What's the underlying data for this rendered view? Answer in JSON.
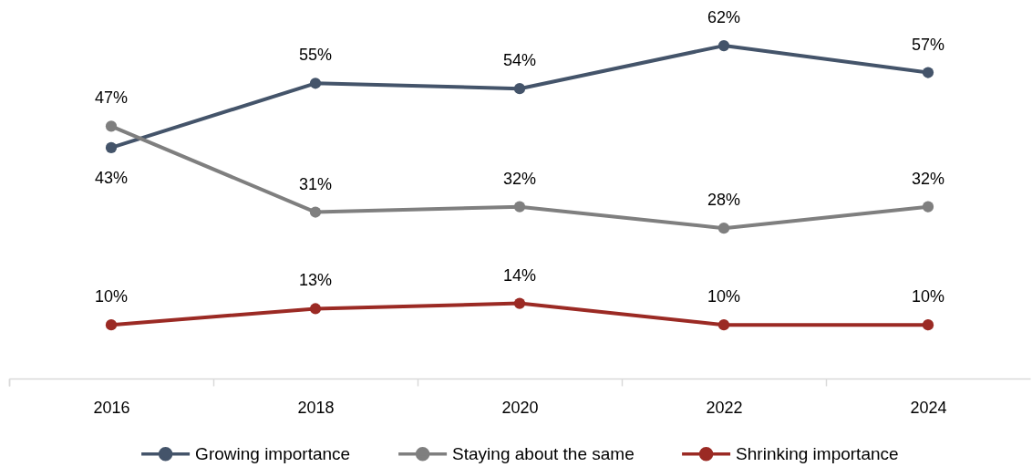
{
  "chart_data": {
    "type": "line",
    "categories": [
      "2016",
      "2018",
      "2020",
      "2022",
      "2024"
    ],
    "series": [
      {
        "name": "Growing importance",
        "color": "#44546a",
        "values": [
          43,
          55,
          54,
          62,
          57
        ],
        "value_labels": [
          "43%",
          "55%",
          "54%",
          "62%",
          "57%"
        ]
      },
      {
        "name": "Staying about the same",
        "color": "#7f7f7f",
        "values": [
          47,
          31,
          32,
          28,
          32
        ],
        "value_labels": [
          "47%",
          "31%",
          "32%",
          "28%",
          "32%"
        ]
      },
      {
        "name": "Shrinking importance",
        "color": "#9b2a24",
        "values": [
          10,
          13,
          14,
          10,
          10
        ],
        "value_labels": [
          "10%",
          "13%",
          "14%",
          "10%",
          "10%"
        ]
      }
    ],
    "ylim": [
      0,
      70
    ],
    "tick_labels": "x",
    "legend": "bottom",
    "marker": "circle",
    "line_style": "solid"
  }
}
